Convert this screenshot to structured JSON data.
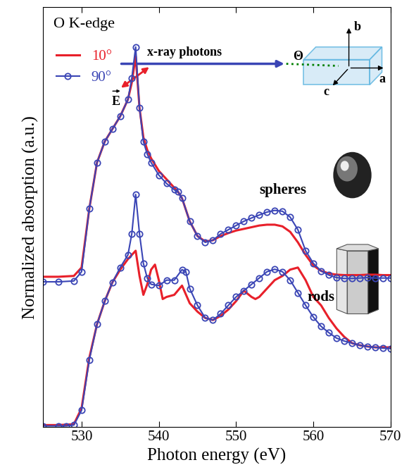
{
  "chart_data": {
    "type": "line",
    "xlabel": "Photon energy (eV)",
    "ylabel": "Normalized absorption (a.u.)",
    "xlim": [
      525,
      570
    ],
    "xticks": [
      530,
      540,
      550,
      560,
      570
    ],
    "ylim": [
      0,
      10
    ],
    "tick_labels": "x",
    "legend": "upper left",
    "annotations": [
      "O K-edge",
      "spheres",
      "rods",
      "x-ray photons",
      "E",
      "Θ",
      "b",
      "a",
      "c"
    ],
    "series": [
      {
        "name": "10°",
        "color": "#e8202a",
        "marker": "none",
        "line_style": "solid",
        "x": [
          525,
          527,
          529,
          530,
          531,
          532,
          533,
          534,
          535,
          536,
          536.5,
          537,
          537.5,
          538,
          538.5,
          539,
          540,
          541,
          542,
          542.5,
          543,
          544,
          545,
          546,
          547,
          548,
          549,
          550,
          551,
          552,
          553,
          554,
          555,
          556,
          557,
          558,
          559,
          560,
          561,
          562,
          563,
          564,
          565,
          566,
          567,
          568,
          569,
          570
        ],
        "values": [
          3.58,
          3.58,
          3.6,
          3.8,
          5.2,
          6.3,
          6.8,
          7.1,
          7.4,
          7.8,
          8.2,
          8.83,
          7.6,
          6.9,
          6.6,
          6.4,
          6.1,
          5.9,
          5.7,
          5.6,
          5.45,
          4.9,
          4.55,
          4.42,
          4.45,
          4.55,
          4.62,
          4.68,
          4.72,
          4.76,
          4.8,
          4.82,
          4.82,
          4.78,
          4.65,
          4.4,
          4.1,
          3.85,
          3.72,
          3.66,
          3.63,
          3.62,
          3.62,
          3.62,
          3.63,
          3.63,
          3.62,
          3.62
        ]
      },
      {
        "name": "90°",
        "color": "#3a45b5",
        "marker": "o",
        "line_style": "solid",
        "x": [
          525,
          527,
          529,
          530,
          531,
          532,
          533,
          534,
          535,
          536,
          536.5,
          537,
          537.5,
          538,
          538.5,
          539,
          540,
          541,
          542,
          542.5,
          543,
          544,
          545,
          546,
          547,
          548,
          549,
          550,
          551,
          552,
          553,
          554,
          555,
          556,
          557,
          558,
          559,
          560,
          561,
          562,
          563,
          564,
          565,
          566,
          567,
          568,
          569,
          570
        ],
        "values": [
          3.46,
          3.46,
          3.48,
          3.7,
          5.2,
          6.3,
          6.8,
          7.1,
          7.4,
          7.8,
          8.3,
          9.05,
          7.6,
          6.8,
          6.5,
          6.3,
          6.0,
          5.8,
          5.65,
          5.6,
          5.45,
          4.9,
          4.55,
          4.4,
          4.45,
          4.6,
          4.7,
          4.8,
          4.9,
          4.98,
          5.05,
          5.12,
          5.16,
          5.14,
          5.0,
          4.7,
          4.2,
          3.9,
          3.72,
          3.62,
          3.56,
          3.54,
          3.54,
          3.55,
          3.56,
          3.55,
          3.55,
          3.55
        ]
      },
      {
        "name": "10°",
        "color": "#e8202a",
        "marker": "none",
        "line_style": "solid",
        "x": [
          525,
          527,
          529,
          530,
          531,
          532,
          533,
          534,
          535,
          536,
          537,
          537.5,
          538,
          538.5,
          539,
          539.5,
          540,
          540.5,
          541,
          542,
          543,
          544,
          545,
          546,
          547,
          548,
          549,
          550,
          551,
          552,
          552.5,
          553,
          554,
          555,
          556,
          557,
          558,
          559,
          560,
          561,
          562,
          563,
          564,
          565,
          566,
          567,
          568,
          569,
          570
        ],
        "values": [
          0.05,
          0.05,
          0.07,
          0.45,
          1.65,
          2.45,
          3.0,
          3.45,
          3.75,
          4.0,
          4.2,
          3.6,
          3.15,
          3.4,
          3.75,
          3.87,
          3.5,
          3.05,
          3.1,
          3.15,
          3.37,
          2.95,
          2.75,
          2.6,
          2.55,
          2.65,
          2.8,
          3.0,
          3.25,
          3.1,
          3.05,
          3.1,
          3.3,
          3.5,
          3.6,
          3.75,
          3.8,
          3.5,
          3.1,
          2.9,
          2.6,
          2.35,
          2.15,
          2.0,
          1.95,
          1.92,
          1.9,
          1.9,
          1.9
        ]
      },
      {
        "name": "90°",
        "color": "#3a45b5",
        "marker": "o",
        "line_style": "solid",
        "x": [
          525,
          527,
          528,
          529,
          530,
          531,
          532,
          533,
          534,
          535,
          536,
          536.5,
          537,
          537.5,
          538,
          538.5,
          539,
          540,
          541,
          542,
          543,
          543.5,
          544,
          545,
          546,
          547,
          548,
          549,
          550,
          551,
          552,
          553,
          554,
          555,
          556,
          557,
          558,
          559,
          560,
          561,
          562,
          563,
          564,
          565,
          566,
          567,
          568,
          569,
          570
        ],
        "values": [
          0.03,
          0.03,
          0.03,
          0.05,
          0.4,
          1.6,
          2.45,
          3.0,
          3.45,
          3.8,
          4.1,
          4.6,
          5.54,
          4.6,
          3.9,
          3.55,
          3.4,
          3.37,
          3.5,
          3.5,
          3.75,
          3.7,
          3.3,
          2.9,
          2.6,
          2.55,
          2.7,
          2.9,
          3.1,
          3.25,
          3.4,
          3.55,
          3.7,
          3.76,
          3.7,
          3.5,
          3.2,
          2.9,
          2.62,
          2.4,
          2.25,
          2.12,
          2.05,
          2.0,
          1.95,
          1.92,
          1.9,
          1.88,
          1.87
        ]
      }
    ]
  }
}
